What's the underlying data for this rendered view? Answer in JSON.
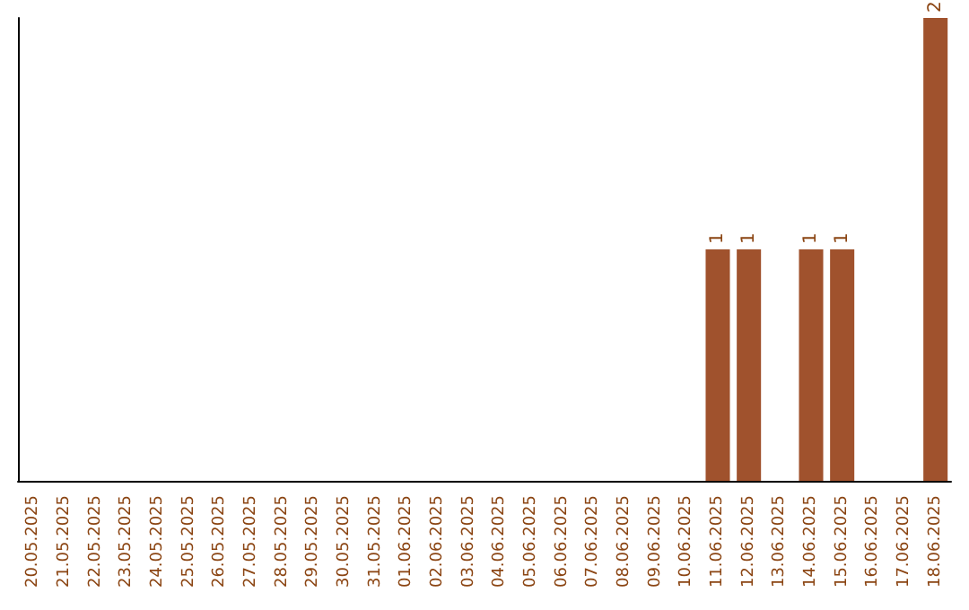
{
  "chart_data": {
    "type": "bar",
    "categories": [
      "20.05.2025",
      "21.05.2025",
      "22.05.2025",
      "23.05.2025",
      "24.05.2025",
      "25.05.2025",
      "26.05.2025",
      "27.05.2025",
      "28.05.2025",
      "29.05.2025",
      "30.05.2025",
      "31.05.2025",
      "01.06.2025",
      "02.06.2025",
      "03.06.2025",
      "04.06.2025",
      "05.06.2025",
      "06.06.2025",
      "07.06.2025",
      "08.06.2025",
      "09.06.2025",
      "10.06.2025",
      "11.06.2025",
      "12.06.2025",
      "13.06.2025",
      "14.06.2025",
      "15.06.2025",
      "16.06.2025",
      "17.06.2025",
      "18.06.2025"
    ],
    "values": [
      null,
      null,
      null,
      null,
      null,
      null,
      null,
      null,
      null,
      null,
      null,
      null,
      null,
      null,
      null,
      null,
      null,
      null,
      null,
      null,
      null,
      null,
      1,
      1,
      null,
      1,
      1,
      null,
      null,
      2
    ],
    "data_labels": true,
    "color": "#a0522d",
    "tick_labels": "x",
    "grid": false
  }
}
